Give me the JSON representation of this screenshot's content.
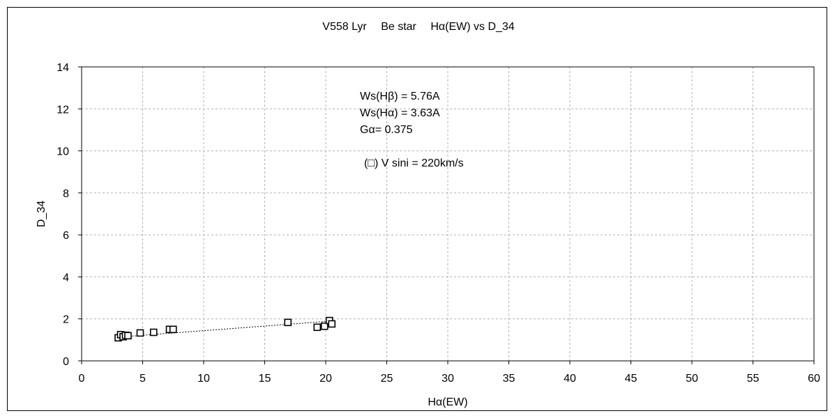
{
  "chart_data": {
    "type": "scatter",
    "title": "V558 Lyr　 Be star　 Hα(EW) vs D_34",
    "xlabel": "Hα(EW)",
    "ylabel": "D_34",
    "xlim": [
      0,
      60
    ],
    "ylim": [
      0,
      14
    ],
    "xticks": [
      0,
      5,
      10,
      15,
      20,
      25,
      30,
      35,
      40,
      45,
      50,
      55,
      60
    ],
    "yticks": [
      0,
      2,
      4,
      6,
      8,
      10,
      12,
      14
    ],
    "xtick_labels": [
      "0",
      "5",
      "10",
      "15",
      "20",
      "25",
      "30",
      "35",
      "40",
      "45",
      "50",
      "55",
      "60"
    ],
    "ytick_labels": [
      "0",
      "2",
      "4",
      "6",
      "8",
      "10",
      "12",
      "14"
    ],
    "grid": true,
    "legend": "none",
    "marker": "open-square",
    "marker_color": "#000000",
    "series": [
      {
        "points": [
          {
            "x": 3.0,
            "y": 1.1
          },
          {
            "x": 3.2,
            "y": 1.25
          },
          {
            "x": 3.4,
            "y": 1.15
          },
          {
            "x": 3.6,
            "y": 1.22
          },
          {
            "x": 3.8,
            "y": 1.2
          },
          {
            "x": 4.8,
            "y": 1.33
          },
          {
            "x": 5.9,
            "y": 1.36
          },
          {
            "x": 7.2,
            "y": 1.5
          },
          {
            "x": 7.5,
            "y": 1.5
          },
          {
            "x": 16.9,
            "y": 1.83
          },
          {
            "x": 19.3,
            "y": 1.6
          },
          {
            "x": 19.9,
            "y": 1.65
          },
          {
            "x": 20.3,
            "y": 1.92
          },
          {
            "x": 20.5,
            "y": 1.76
          }
        ]
      }
    ],
    "trendline": {
      "style": "dotted",
      "from": {
        "x": 3.0,
        "y": 1.13
      },
      "to": {
        "x": 20.5,
        "y": 1.9
      }
    },
    "annotations": [
      "Ws(Hβ) = 5.76A",
      "Ws(Hα) = 3.63A",
      "Gα= 0.375",
      "(□) V sini = 220km/s"
    ]
  }
}
